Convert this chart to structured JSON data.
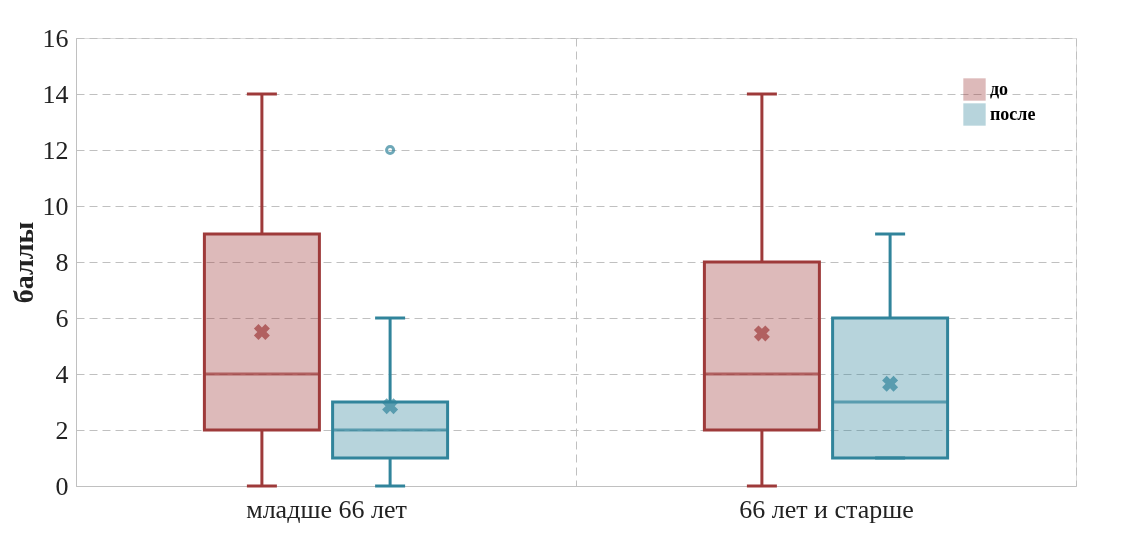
{
  "chart_data": {
    "type": "box",
    "ylabel": "баллы",
    "categories": [
      "младше 66 лет",
      "66 лет и старше"
    ],
    "series": [
      {
        "name": "до",
        "color": "#9e3a3a",
        "boxes": [
          {
            "low": 0,
            "q1": 2,
            "median": 4,
            "q3": 9,
            "high": 14,
            "mean": 5.5
          },
          {
            "low": 0,
            "q1": 2,
            "median": 4,
            "q3": 8,
            "high": 14,
            "mean": 5.45
          }
        ]
      },
      {
        "name": "после",
        "color": "#31849b",
        "boxes": [
          {
            "low": 0,
            "q1": 1,
            "median": 2,
            "q3": 3,
            "high": 6,
            "mean": 2.85,
            "outliers": [
              12
            ]
          },
          {
            "low": 1,
            "q1": 1,
            "median": 3,
            "q3": 6,
            "high": 9,
            "mean": 3.65
          }
        ]
      }
    ],
    "ylim": [
      0,
      16
    ],
    "yticks": [
      0,
      2,
      4,
      6,
      8,
      10,
      12,
      14,
      16
    ],
    "grid": true,
    "legend": "top right",
    "marker": "cross"
  }
}
